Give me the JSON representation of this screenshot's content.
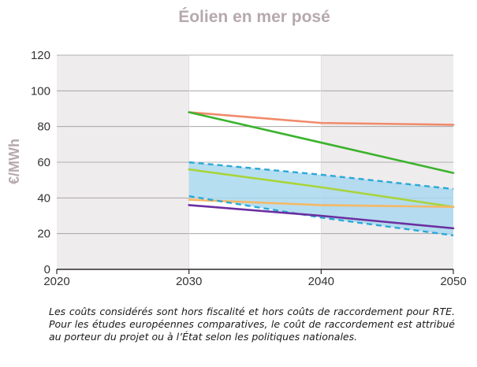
{
  "chart_data": {
    "type": "line",
    "title": "Éolien en mer posé",
    "ylabel": "€/MWh",
    "xlabel": "",
    "xlim": [
      2020,
      2050
    ],
    "ylim": [
      0,
      120
    ],
    "x_ticks": [
      "2020",
      "2030",
      "2040",
      "2050"
    ],
    "y_ticks": [
      "0",
      "20",
      "40",
      "60",
      "80",
      "100",
      "120"
    ],
    "grid": "horizontal",
    "x": [
      2030,
      2040,
      2050
    ],
    "series": [
      {
        "color": "#f08a6a",
        "style": "solid",
        "values": [
          88,
          82,
          81
        ]
      },
      {
        "color": "#3bb32d",
        "style": "solid",
        "values": [
          88,
          71,
          54
        ]
      },
      {
        "color": "#2aa8d8",
        "style": "dashed",
        "values": [
          60,
          53,
          45
        ]
      },
      {
        "color": "#a8d43c",
        "style": "solid",
        "values": [
          56,
          46,
          35
        ]
      },
      {
        "color": "#f5b865",
        "style": "solid",
        "values": [
          39,
          36,
          35
        ]
      },
      {
        "color": "#2aa8d8",
        "style": "dashed",
        "values": [
          41,
          29,
          19
        ]
      },
      {
        "color": "#6b2fa0",
        "style": "solid",
        "values": [
          36,
          30,
          23
        ]
      }
    ],
    "band": {
      "color": "#a9d8ef",
      "upper": [
        60,
        53,
        45
      ],
      "lower": [
        41,
        29,
        19
      ]
    },
    "shaded_columns": {
      "color": "#efeced",
      "ranges": [
        [
          2020,
          2030
        ],
        [
          2040,
          2050
        ]
      ]
    }
  },
  "caption": "Les coûts considérés sont hors fiscalité et hors coûts de raccordement pour RTE. Pour les études européennes comparatives, le coût de raccordement est attribué au porteur du projet ou à l’État selon les politiques nationales."
}
